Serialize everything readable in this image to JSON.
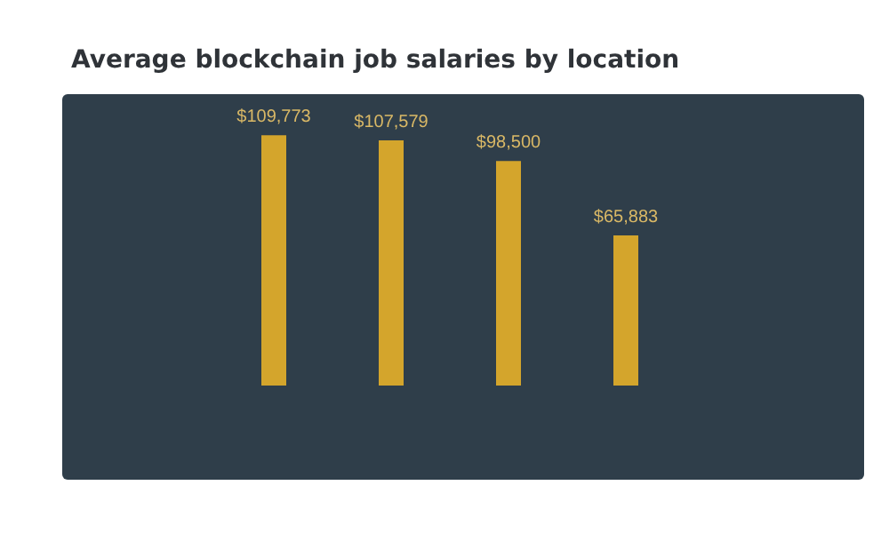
{
  "chart_data": {
    "type": "bar",
    "title": "Average blockchain job salaries by location",
    "categories": [
      null,
      null,
      null,
      null
    ],
    "values": [
      109773,
      107579,
      98500,
      65883
    ],
    "value_labels": [
      "$109,773",
      "$107,579",
      "$98,500",
      "$65,883"
    ],
    "color": "#d4a52c"
  }
}
